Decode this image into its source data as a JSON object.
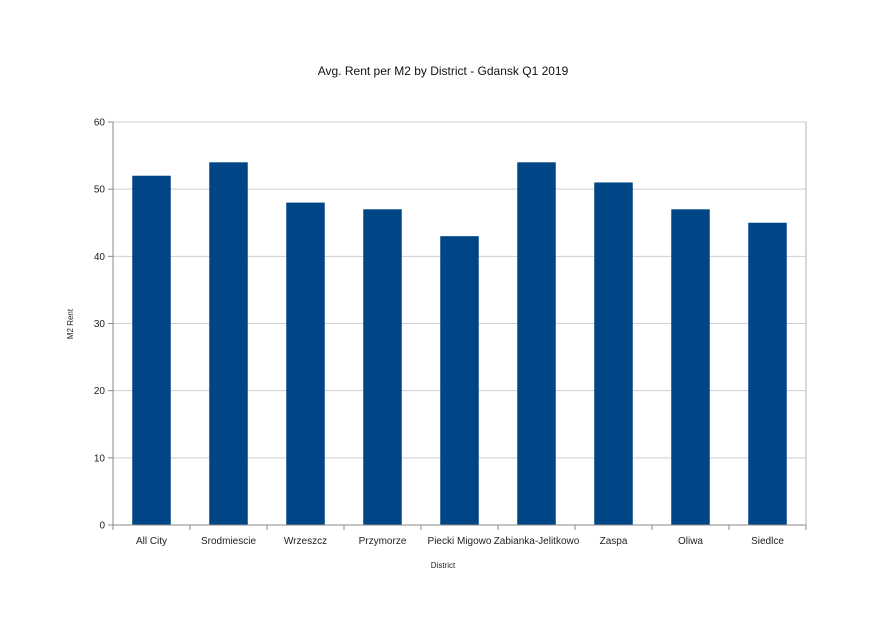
{
  "chart_data": {
    "type": "bar",
    "title": "Avg. Rent per M2 by District - Gdansk Q1 2019",
    "xlabel": "District",
    "ylabel": "M2 Rent",
    "categories": [
      "All City",
      "Srodmiescie",
      "Wrzeszcz",
      "Przymorze",
      "Piecki Migowo",
      "Zabianka-Jelitkowo",
      "Zaspa",
      "Oliwa",
      "Siedlce"
    ],
    "values": [
      52,
      54,
      48,
      47,
      43,
      54,
      51,
      47,
      45
    ],
    "ylim": [
      0,
      60
    ],
    "yticks": [
      "0",
      "10",
      "20",
      "30",
      "40",
      "50",
      "60"
    ],
    "grid": true,
    "legend": "none",
    "bar_color": "#004586"
  }
}
